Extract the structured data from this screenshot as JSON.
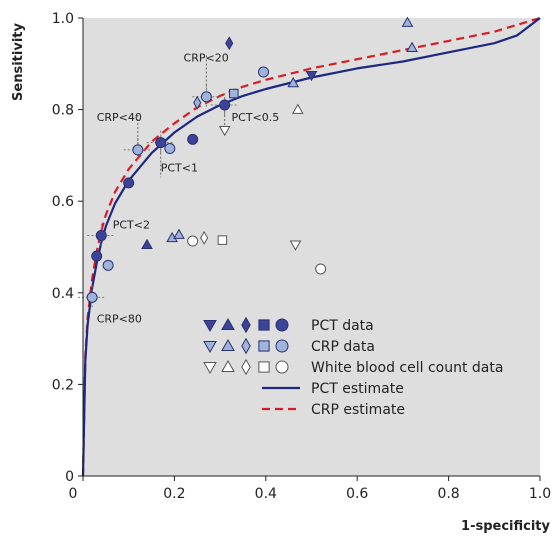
{
  "chart_data": {
    "type": "scatter",
    "title": "",
    "xlabel": "1-specificity",
    "ylabel": "Sensitivity",
    "xlim": [
      0,
      1.0
    ],
    "ylim": [
      0,
      1.0
    ],
    "x_ticks": [
      "0",
      "0.2",
      "0.4",
      "0.6",
      "0.8",
      "1.0"
    ],
    "y_ticks": [
      "0",
      "0.2",
      "0.4",
      "0.6",
      "0.8",
      "1.0"
    ],
    "grid": false,
    "legend_position": "bottom-right",
    "colors": {
      "background": "#dedede",
      "pct_fill": "#3c4497",
      "crp_fill": "#9fb4da",
      "marker_stroke": "#2a3070",
      "wbc_stroke": "#555555",
      "pct_line": "#1e2882",
      "crp_line": "#d51e24"
    },
    "legend": [
      {
        "label": "PCT data",
        "symbols": [
          "triangle-down",
          "triangle-up",
          "diamond",
          "square",
          "circle"
        ],
        "style": "pct"
      },
      {
        "label": "CRP data",
        "symbols": [
          "triangle-down",
          "triangle-up",
          "diamond",
          "square",
          "circle"
        ],
        "style": "crp"
      },
      {
        "label": "White blood cell count data",
        "symbols": [
          "triangle-down",
          "triangle-up",
          "diamond",
          "square",
          "circle"
        ],
        "style": "wbc"
      },
      {
        "label": "PCT estimate",
        "style": "pct_line"
      },
      {
        "label": "CRP estimate",
        "style": "crp_line"
      }
    ],
    "series": [
      {
        "name": "PCT data",
        "points": [
          {
            "x": 0.03,
            "y": 0.48,
            "shape": "circle"
          },
          {
            "x": 0.04,
            "y": 0.525,
            "shape": "circle"
          },
          {
            "x": 0.1,
            "y": 0.64,
            "shape": "circle"
          },
          {
            "x": 0.17,
            "y": 0.728,
            "shape": "circle"
          },
          {
            "x": 0.24,
            "y": 0.735,
            "shape": "circle"
          },
          {
            "x": 0.31,
            "y": 0.81,
            "shape": "circle"
          },
          {
            "x": 0.14,
            "y": 0.505,
            "shape": "triangle-up"
          },
          {
            "x": 0.32,
            "y": 0.945,
            "shape": "diamond"
          },
          {
            "x": 0.5,
            "y": 0.875,
            "shape": "triangle-down"
          }
        ]
      },
      {
        "name": "CRP data",
        "points": [
          {
            "x": 0.02,
            "y": 0.39,
            "shape": "circle"
          },
          {
            "x": 0.055,
            "y": 0.46,
            "shape": "circle"
          },
          {
            "x": 0.12,
            "y": 0.712,
            "shape": "circle"
          },
          {
            "x": 0.19,
            "y": 0.715,
            "shape": "circle"
          },
          {
            "x": 0.27,
            "y": 0.828,
            "shape": "circle"
          },
          {
            "x": 0.395,
            "y": 0.882,
            "shape": "circle"
          },
          {
            "x": 0.33,
            "y": 0.835,
            "shape": "square"
          },
          {
            "x": 0.25,
            "y": 0.815,
            "shape": "diamond"
          },
          {
            "x": 0.195,
            "y": 0.52,
            "shape": "triangle-up"
          },
          {
            "x": 0.21,
            "y": 0.527,
            "shape": "triangle-up"
          },
          {
            "x": 0.46,
            "y": 0.858,
            "shape": "triangle-up"
          },
          {
            "x": 0.71,
            "y": 0.99,
            "shape": "triangle-up"
          },
          {
            "x": 0.72,
            "y": 0.935,
            "shape": "triangle-up"
          }
        ]
      },
      {
        "name": "White blood cell count data",
        "points": [
          {
            "x": 0.24,
            "y": 0.513,
            "shape": "circle"
          },
          {
            "x": 0.52,
            "y": 0.452,
            "shape": "circle"
          },
          {
            "x": 0.305,
            "y": 0.515,
            "shape": "square"
          },
          {
            "x": 0.265,
            "y": 0.52,
            "shape": "diamond"
          },
          {
            "x": 0.31,
            "y": 0.755,
            "shape": "triangle-down"
          },
          {
            "x": 0.465,
            "y": 0.505,
            "shape": "triangle-down"
          },
          {
            "x": 0.47,
            "y": 0.8,
            "shape": "triangle-up"
          }
        ]
      },
      {
        "name": "PCT estimate",
        "line": [
          [
            0,
            0
          ],
          [
            0.005,
            0.25
          ],
          [
            0.01,
            0.33
          ],
          [
            0.02,
            0.41
          ],
          [
            0.03,
            0.465
          ],
          [
            0.04,
            0.51
          ],
          [
            0.05,
            0.545
          ],
          [
            0.07,
            0.595
          ],
          [
            0.1,
            0.645
          ],
          [
            0.15,
            0.705
          ],
          [
            0.2,
            0.75
          ],
          [
            0.25,
            0.785
          ],
          [
            0.3,
            0.81
          ],
          [
            0.35,
            0.83
          ],
          [
            0.4,
            0.845
          ],
          [
            0.5,
            0.87
          ],
          [
            0.6,
            0.89
          ],
          [
            0.7,
            0.905
          ],
          [
            0.8,
            0.925
          ],
          [
            0.9,
            0.945
          ],
          [
            0.95,
            0.962
          ],
          [
            1.0,
            1.0
          ]
        ]
      },
      {
        "name": "CRP estimate",
        "line": [
          [
            0,
            0
          ],
          [
            0.005,
            0.26
          ],
          [
            0.01,
            0.345
          ],
          [
            0.02,
            0.43
          ],
          [
            0.03,
            0.49
          ],
          [
            0.04,
            0.535
          ],
          [
            0.05,
            0.57
          ],
          [
            0.07,
            0.62
          ],
          [
            0.1,
            0.67
          ],
          [
            0.15,
            0.73
          ],
          [
            0.2,
            0.77
          ],
          [
            0.25,
            0.805
          ],
          [
            0.3,
            0.83
          ],
          [
            0.35,
            0.85
          ],
          [
            0.4,
            0.865
          ],
          [
            0.5,
            0.89
          ],
          [
            0.6,
            0.91
          ],
          [
            0.7,
            0.93
          ],
          [
            0.8,
            0.95
          ],
          [
            0.9,
            0.97
          ],
          [
            1.0,
            1.0
          ]
        ]
      }
    ],
    "annotations": [
      {
        "text": "CRP<20",
        "x": 0.27,
        "y": 0.828,
        "label_x": 0.22,
        "label_y": 0.905,
        "guide": "vertical"
      },
      {
        "text": "PCT<0.5",
        "x": 0.31,
        "y": 0.81,
        "label_x": 0.325,
        "label_y": 0.775,
        "guide": "vertical"
      },
      {
        "text": "CRP<40",
        "x": 0.12,
        "y": 0.712,
        "label_x": 0.03,
        "label_y": 0.775,
        "guide": "vertical"
      },
      {
        "text": "PCT<1",
        "x": 0.17,
        "y": 0.728,
        "label_x": 0.17,
        "label_y": 0.665,
        "guide": "vertical"
      },
      {
        "text": "PCT<2",
        "x": 0.04,
        "y": 0.525,
        "label_x": 0.065,
        "label_y": 0.54,
        "guide": "none"
      },
      {
        "text": "CRP<80",
        "x": 0.02,
        "y": 0.39,
        "label_x": 0.03,
        "label_y": 0.335,
        "guide": "none"
      }
    ]
  }
}
